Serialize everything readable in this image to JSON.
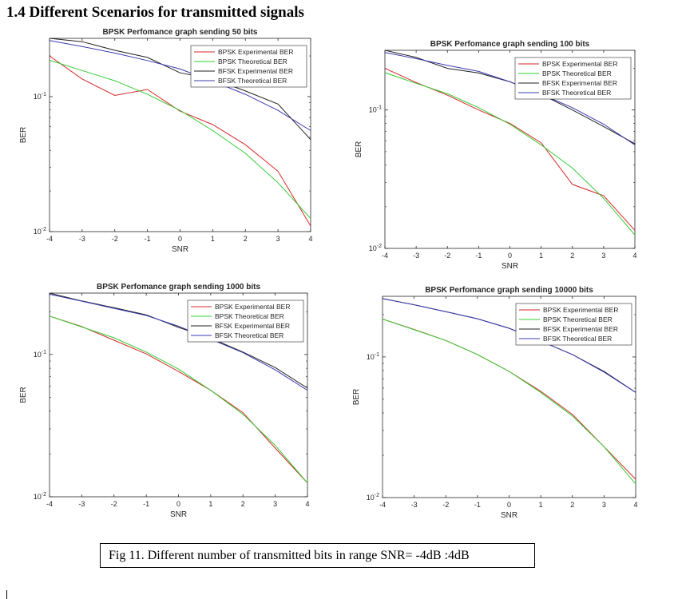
{
  "heading": "1.4 Different Scenarios for transmitted signals",
  "caption": "Fig 11. Different number of transmitted bits in range SNR= -4dB :4dB",
  "colors": {
    "red": "#d62728",
    "green": "#33cc33",
    "black": "#222222",
    "blue": "#3b3bb3"
  },
  "chart_data": [
    {
      "type": "line",
      "title": "BPSK Perfomance graph sending 50 bits",
      "xlabel": "SNR",
      "ylabel": "BER",
      "yscale": "log",
      "xlim": [
        -4,
        4
      ],
      "ylim": [
        0.01,
        0.27
      ],
      "xticks": [
        "-4",
        "-3",
        "-2",
        "-1",
        "0",
        "1",
        "2",
        "3",
        "4"
      ],
      "yticks": [
        {
          "value": 0.1,
          "exp": "-1"
        },
        {
          "value": 0.01,
          "exp": "-2"
        }
      ],
      "grid": false,
      "legend_position": "top-right",
      "x": [
        -4,
        -3,
        -2,
        -1,
        0,
        1,
        2,
        3,
        4
      ],
      "series": [
        {
          "name": "BPSK Experimental BER",
          "color": "red",
          "values": [
            0.2,
            0.135,
            0.102,
            0.113,
            0.078,
            0.062,
            0.044,
            0.028,
            0.011
          ]
        },
        {
          "name": "BPSK Theoretical BER",
          "color": "green",
          "values": [
            0.186,
            0.156,
            0.131,
            0.104,
            0.079,
            0.056,
            0.038,
            0.023,
            0.0125
          ]
        },
        {
          "name": "BFSK Experimental BER",
          "color": "black",
          "values": [
            0.27,
            0.255,
            0.22,
            0.195,
            0.15,
            0.135,
            0.11,
            0.088,
            0.048
          ]
        },
        {
          "name": "BFSK Theoretical BER",
          "color": "blue",
          "values": [
            0.26,
            0.235,
            0.21,
            0.185,
            0.16,
            0.13,
            0.104,
            0.079,
            0.056
          ]
        }
      ]
    },
    {
      "type": "line",
      "title": "BPSK Perfomance graph sending 100 bits",
      "xlabel": "SNR",
      "ylabel": "BER",
      "yscale": "log",
      "xlim": [
        -4,
        4
      ],
      "ylim": [
        0.01,
        0.27
      ],
      "xticks": [
        "-4",
        "-3",
        "-2",
        "-1",
        "0",
        "1",
        "2",
        "3",
        "4"
      ],
      "yticks": [
        {
          "value": 0.1,
          "exp": "-1"
        },
        {
          "value": 0.01,
          "exp": "-2"
        }
      ],
      "grid": false,
      "legend_position": "top-right",
      "x": [
        -4,
        -3,
        -2,
        -1,
        0,
        1,
        2,
        3,
        4
      ],
      "series": [
        {
          "name": "BPSK Experimental BER",
          "color": "red",
          "values": [
            0.2,
            0.158,
            0.128,
            0.1,
            0.08,
            0.058,
            0.029,
            0.024,
            0.0135
          ]
        },
        {
          "name": "BPSK Theoretical BER",
          "color": "green",
          "values": [
            0.186,
            0.156,
            0.131,
            0.104,
            0.079,
            0.056,
            0.038,
            0.023,
            0.0125
          ]
        },
        {
          "name": "BFSK Experimental BER",
          "color": "black",
          "values": [
            0.27,
            0.24,
            0.2,
            0.185,
            0.16,
            0.13,
            0.1,
            0.076,
            0.057
          ]
        },
        {
          "name": "BFSK Theoretical BER",
          "color": "blue",
          "values": [
            0.26,
            0.235,
            0.21,
            0.19,
            0.16,
            0.13,
            0.104,
            0.079,
            0.056
          ]
        }
      ]
    },
    {
      "type": "line",
      "title": "BPSK Perfomance graph sending 1000 bits",
      "xlabel": "SNR",
      "ylabel": "BER",
      "yscale": "log",
      "xlim": [
        -4,
        4
      ],
      "ylim": [
        0.01,
        0.27
      ],
      "xticks": [
        "-4",
        "-3",
        "-2",
        "-1",
        "0",
        "1",
        "2",
        "3",
        "4"
      ],
      "yticks": [
        {
          "value": 0.1,
          "exp": "-1"
        },
        {
          "value": 0.01,
          "exp": "-2"
        }
      ],
      "grid": false,
      "legend_position": "top-right",
      "x": [
        -4,
        -3,
        -2,
        -1,
        0,
        1,
        2,
        3,
        4
      ],
      "series": [
        {
          "name": "BPSK Experimental BER",
          "color": "red",
          "values": [
            0.186,
            0.157,
            0.126,
            0.101,
            0.076,
            0.056,
            0.039,
            0.022,
            0.0125
          ]
        },
        {
          "name": "BPSK Theoretical BER",
          "color": "green",
          "values": [
            0.186,
            0.156,
            0.131,
            0.104,
            0.079,
            0.056,
            0.038,
            0.023,
            0.0125
          ]
        },
        {
          "name": "BFSK Experimental BER",
          "color": "black",
          "values": [
            0.27,
            0.238,
            0.213,
            0.19,
            0.155,
            0.13,
            0.104,
            0.081,
            0.058
          ]
        },
        {
          "name": "BFSK Theoretical BER",
          "color": "blue",
          "values": [
            0.265,
            0.237,
            0.211,
            0.188,
            0.158,
            0.128,
            0.103,
            0.078,
            0.056
          ]
        }
      ]
    },
    {
      "type": "line",
      "title": "BPSK Perfomance graph sending 10000 bits",
      "xlabel": "SNR",
      "ylabel": "BER",
      "yscale": "log",
      "xlim": [
        -4,
        4
      ],
      "ylim": [
        0.01,
        0.27
      ],
      "xticks": [
        "-4",
        "-3",
        "-2",
        "-1",
        "0",
        "1",
        "2",
        "3",
        "4"
      ],
      "yticks": [
        {
          "value": 0.1,
          "exp": "-1"
        },
        {
          "value": 0.01,
          "exp": "-2"
        }
      ],
      "grid": false,
      "legend_position": "top-right",
      "x": [
        -4,
        -3,
        -2,
        -1,
        0,
        1,
        2,
        3,
        4
      ],
      "series": [
        {
          "name": "BPSK Experimental BER",
          "color": "red",
          "values": [
            0.186,
            0.157,
            0.131,
            0.104,
            0.079,
            0.057,
            0.039,
            0.023,
            0.0135
          ]
        },
        {
          "name": "BPSK Theoretical BER",
          "color": "green",
          "values": [
            0.186,
            0.156,
            0.131,
            0.104,
            0.079,
            0.056,
            0.038,
            0.023,
            0.0125
          ]
        },
        {
          "name": "BFSK Experimental BER",
          "color": "black",
          "values": [
            0.26,
            0.235,
            0.21,
            0.187,
            0.16,
            0.13,
            0.104,
            0.079,
            0.056
          ]
        },
        {
          "name": "BFSK Theoretical BER",
          "color": "blue",
          "values": [
            0.26,
            0.235,
            0.21,
            0.187,
            0.16,
            0.13,
            0.104,
            0.078,
            0.056
          ]
        }
      ]
    }
  ]
}
